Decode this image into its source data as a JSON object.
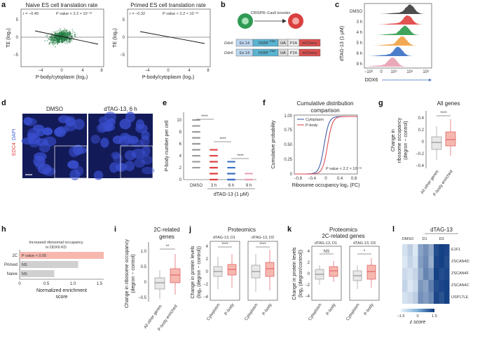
{
  "panels": {
    "a": {
      "label": "a",
      "left": {
        "title": "Naive ES cell translation rate",
        "r": "r = −0.45",
        "p": "P value < 2.2 × 10⁻¹⁶"
      },
      "right": {
        "title": "Primed ES cell translation rate",
        "r": "r = −0.32",
        "p": "P value < 2.2 × 10⁻¹⁶"
      },
      "xlabel": "P-body/cytoplasm (log₂)",
      "ylabel": "TE (log₂)",
      "xticks": [
        "−4",
        "0",
        "4",
        "8"
      ],
      "yticks": [
        "5",
        "0",
        "−5"
      ]
    },
    "b": {
      "label": "b",
      "title": "CRISPR–Cas9 knockin",
      "rows": [
        {
          "gene": "Ddx6",
          "ex": "Ex 14",
          "fkbp": "FKBP",
          "sup": "F36V",
          "ha": "HA",
          "p2a": "P2A",
          "mch": "mCherry"
        },
        {
          "gene": "Ddx6",
          "ex": "Ex 14",
          "fkbp": "FKBP",
          "sup": "F36V",
          "ha": "HA",
          "p2a": "P2A",
          "mch": "mCherry"
        }
      ]
    },
    "c": {
      "label": "c",
      "ylabel": "dTAG-13 (1 μM)",
      "xlabel": "DDX6",
      "rows": [
        "DMSO",
        "3 h",
        "4 h",
        "5 h",
        "6 h",
        "9 h"
      ],
      "xticks": [
        "−10³",
        "0",
        "10³",
        "10⁴",
        "10⁵"
      ],
      "colors": [
        "#3a3a3a",
        "#e04040",
        "#2a9a4a",
        "#f2a040",
        "#3a6fc4",
        "#e8a0b0"
      ]
    },
    "d": {
      "label": "d",
      "left": "DMSO",
      "right": "dTAG-13, 6 h",
      "stain_edc4": "EDC4",
      "stain_dapi": "DAPI"
    },
    "e": {
      "label": "e",
      "ylabel": "P-body number per cell",
      "xlabel": "dTAG-13 (1 μM)",
      "cats": [
        "DMSO",
        "3 h",
        "6 h",
        "9 h"
      ],
      "yticks": [
        "0",
        "2",
        "4",
        "6",
        "8",
        "10"
      ],
      "sig": [
        "****",
        "****",
        "****"
      ]
    },
    "f": {
      "label": "f",
      "title1": "Cumulative distribution",
      "title2": "comparison",
      "ylabel": "Cumulative probability",
      "xlabel": "Ribosome occupancy log₂ (FC)",
      "legend": [
        "Cytoplasm",
        "P-body"
      ],
      "p": "P value < 2.2 × 10⁻¹⁶",
      "xticks": [
        "−0.8",
        "−0.4",
        "0",
        "0.4",
        "0.8"
      ],
      "yticks": [
        "0",
        "0.25",
        "0.50",
        "0.75",
        "1.00"
      ]
    },
    "g": {
      "label": "g",
      "title": "All genes",
      "ylabel1": "Change in",
      "ylabel2": "ribosome occupancy",
      "ylabel3": "(degron − control)",
      "cats": [
        "All other genes",
        "P-body enriched"
      ],
      "sig": "****",
      "yticks": [
        "0.4",
        "0.2",
        "0",
        "−0.2",
        "−0.4"
      ]
    },
    "h": {
      "label": "h",
      "title1": "Increased ribosomal occupancy",
      "title2": "in DDX6 KD",
      "cats": [
        "2C",
        "Primed",
        "Naive"
      ],
      "bar_text": [
        "P value < 0.05",
        "NS",
        "NS"
      ],
      "xlabel1": "Normalized enrichment",
      "xlabel2": "score",
      "xticks": [
        "0",
        "0.5",
        "1.0",
        "1.5"
      ]
    },
    "i": {
      "label": "i",
      "title1": "2C-related",
      "title2": "genes",
      "ylabel1": "Change in ribosome occupancy",
      "ylabel2": "(degron − control)",
      "cats": [
        "All other genes",
        "P-body enriched"
      ],
      "sig": "**",
      "yticks": [
        "1.0",
        "0.5",
        "0",
        "−0.5"
      ]
    },
    "j": {
      "label": "j",
      "title": "Proteomics",
      "sub1": "dTAG-13, D1",
      "sub2": "dTAG-13, D3",
      "ylabel1": "Change in protein levels",
      "ylabel2": "(log₂ (degron − control))",
      "cats": [
        "Cytoplasm",
        "P-body"
      ],
      "sig": [
        "****",
        "****"
      ],
      "yticks": [
        "4",
        "2",
        "0",
        "−2",
        "−4"
      ]
    },
    "k": {
      "label": "k",
      "title1": "Proteomics",
      "title2": "2C-related genes",
      "sub1": "dTAG-13, D1",
      "sub2": "dTAG-13, D3",
      "ylabel1": "Change in protein levels",
      "ylabel2": "(log₂ (degron/control))",
      "cats": [
        "Cytoplasm",
        "P-body"
      ],
      "sig": [
        "NS",
        "*"
      ],
      "yticks": [
        "4",
        "2",
        "0",
        "−2",
        "−4"
      ]
    },
    "l": {
      "label": "l",
      "header": "dTAG-13",
      "cols": [
        "DMSO",
        "D1",
        "D3"
      ],
      "genes": [
        "E1F1",
        "ZSCAN4D",
        "ZSCAN4F",
        "ZSCAN4C",
        "USP17LE"
      ],
      "scale_min": "−1.5",
      "scale_max": "1.5",
      "scale_mid": "0",
      "zlabel": "z score",
      "values": [
        [
          -1.2,
          -0.9,
          -1.3,
          -0.2,
          0.1,
          -0.3,
          1.2,
          1.4,
          1.3
        ],
        [
          -1.3,
          -1.0,
          -1.2,
          -0.1,
          0.2,
          -0.4,
          1.3,
          1.4,
          1.2
        ],
        [
          -1.1,
          -1.2,
          -1.0,
          -0.3,
          0.3,
          0.0,
          1.4,
          1.2,
          1.3
        ],
        [
          -1.0,
          -1.3,
          -1.1,
          0.0,
          -0.2,
          0.4,
          1.2,
          1.3,
          1.4
        ],
        [
          -1.2,
          -1.1,
          -0.9,
          0.1,
          -0.1,
          0.2,
          1.3,
          1.1,
          1.4
        ]
      ]
    }
  }
}
